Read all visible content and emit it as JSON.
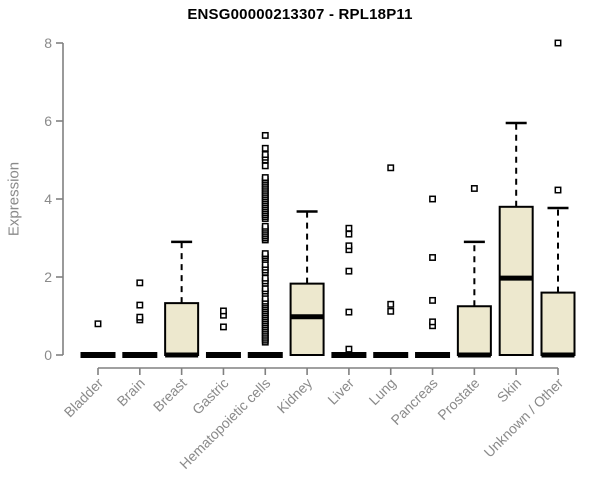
{
  "chart_data": {
    "type": "boxplot",
    "title": "ENSG00000213307 - RPL18P11",
    "ylabel": "Expression",
    "xlabel": "",
    "ylim": [
      0,
      8
    ],
    "yticks": [
      0,
      2,
      4,
      6,
      8
    ],
    "grid": false,
    "legend": "none",
    "categories": [
      "Bladder",
      "Brain",
      "Breast",
      "Gastric",
      "Hematopoietic cells",
      "Kidney",
      "Liver",
      "Lung",
      "Pancreas",
      "Prostate",
      "Skin",
      "Unknown / Other"
    ],
    "series": [
      {
        "label": "Bladder",
        "q1": 0,
        "median": 0,
        "q3": 0,
        "whisker_low": 0,
        "whisker_high": 0,
        "outliers": [
          0.8
        ]
      },
      {
        "label": "Brain",
        "q1": 0,
        "median": 0,
        "q3": 0,
        "whisker_low": 0,
        "whisker_high": 0,
        "outliers": [
          0.9,
          0.97,
          1.28,
          1.85
        ]
      },
      {
        "label": "Breast",
        "q1": 0,
        "median": 0,
        "q3": 1.33,
        "whisker_low": 0,
        "whisker_high": 2.9,
        "outliers": []
      },
      {
        "label": "Gastric",
        "q1": 0,
        "median": 0,
        "q3": 0,
        "whisker_low": 0,
        "whisker_high": 0,
        "outliers": [
          0.72,
          1.02,
          1.13
        ]
      },
      {
        "label": "Hematopoietic cells",
        "q1": 0,
        "median": 0,
        "q3": 0,
        "whisker_low": 0,
        "whisker_high": 0,
        "outliers": [
          0.33,
          0.38,
          0.43,
          0.48,
          0.53,
          0.58,
          0.63,
          0.68,
          0.73,
          0.78,
          0.83,
          0.88,
          0.93,
          0.98,
          1.03,
          1.08,
          1.13,
          1.18,
          1.23,
          1.28,
          1.33,
          1.38,
          1.45,
          1.58,
          1.64,
          1.7,
          1.84,
          1.9,
          1.97,
          2.12,
          2.18,
          2.25,
          2.32,
          2.45,
          2.5,
          2.55,
          2.6,
          2.95,
          3.0,
          3.05,
          3.1,
          3.15,
          3.2,
          3.25,
          3.3,
          3.5,
          3.55,
          3.6,
          3.65,
          3.7,
          3.75,
          3.8,
          3.85,
          3.9,
          3.95,
          4.0,
          4.05,
          4.1,
          4.15,
          4.2,
          4.25,
          4.3,
          4.35,
          4.4,
          4.45,
          4.5,
          4.55,
          4.85,
          5.0,
          5.07,
          5.14,
          5.3,
          5.63
        ]
      },
      {
        "label": "Kidney",
        "q1": 0,
        "median": 0.98,
        "q3": 1.83,
        "whisker_low": 0,
        "whisker_high": 3.68,
        "outliers": []
      },
      {
        "label": "Liver",
        "q1": 0,
        "median": 0,
        "q3": 0,
        "whisker_low": 0,
        "whisker_high": 0,
        "outliers": [
          0.15,
          1.1,
          2.15,
          2.7,
          2.8,
          3.1,
          3.25
        ]
      },
      {
        "label": "Lung",
        "q1": 0,
        "median": 0,
        "q3": 0,
        "whisker_low": 0,
        "whisker_high": 0,
        "outliers": [
          1.12,
          1.3,
          4.8
        ]
      },
      {
        "label": "Pancreas",
        "q1": 0,
        "median": 0,
        "q3": 0,
        "whisker_low": 0,
        "whisker_high": 0,
        "outliers": [
          0.75,
          0.85,
          1.4,
          2.5,
          4.0
        ]
      },
      {
        "label": "Prostate",
        "q1": 0,
        "median": 0,
        "q3": 1.25,
        "whisker_low": 0,
        "whisker_high": 2.9,
        "outliers": [
          4.27
        ]
      },
      {
        "label": "Skin",
        "q1": 0,
        "median": 1.97,
        "q3": 3.8,
        "whisker_low": 0,
        "whisker_high": 5.95,
        "outliers": []
      },
      {
        "label": "Unknown / Other",
        "q1": 0,
        "median": 0,
        "q3": 1.6,
        "whisker_low": 0,
        "whisker_high": 3.77,
        "outliers": [
          4.23,
          8.0
        ]
      }
    ],
    "colors": {
      "box_fill": "#EDE8CE",
      "box_stroke": "#000000",
      "median": "#000000",
      "whisker": "#000000",
      "outlier_stroke": "#000000",
      "outlier_fill": "#FFFFFF",
      "axis": "#808080",
      "tick_label": "#8A8A8A",
      "title": "#000000",
      "background": "#FFFFFF"
    }
  }
}
